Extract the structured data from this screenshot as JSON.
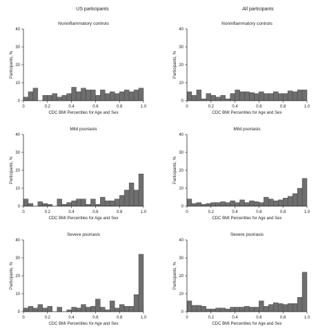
{
  "column_titles": [
    "US participants",
    "All participants"
  ],
  "colors": {
    "bar_fill": "#6e6e6e",
    "bar_stroke": "#3a3a3a",
    "axis": "#222222"
  },
  "chart_data": [
    {
      "type": "bar",
      "column": "US participants",
      "title": "Noninflammatory controls",
      "xlabel": "CDC BMI Percentiles for Age and Sex",
      "ylabel": "Participants, %",
      "xlim": [
        0,
        1
      ],
      "ylim": [
        0,
        40
      ],
      "xticks": [
        0,
        0.2,
        0.4,
        0.6,
        0.8,
        1.0
      ],
      "xtick_labels": [
        "0",
        "0.2",
        "0.4",
        "0.6",
        "0.8",
        "1.0"
      ],
      "yticks": [
        0,
        10,
        20,
        30,
        40
      ],
      "bin_width": 0.04,
      "bin_starts": [
        0,
        0.04,
        0.08,
        0.12,
        0.16,
        0.2,
        0.24,
        0.28,
        0.32,
        0.36,
        0.4,
        0.44,
        0.48,
        0.52,
        0.56,
        0.6,
        0.64,
        0.68,
        0.72,
        0.76,
        0.8,
        0.84,
        0.88,
        0.92,
        0.96
      ],
      "values": [
        2,
        5,
        7,
        0,
        3,
        3,
        4,
        2,
        3,
        4,
        7.5,
        5,
        7,
        6,
        6,
        3,
        6,
        4,
        5,
        4,
        5,
        6,
        5,
        6,
        7
      ]
    },
    {
      "type": "bar",
      "column": "All participants",
      "title": "Noninflammatory controls",
      "xlabel": "CDC BMI Percentiles for Age and Sex",
      "ylabel": "Participants, %",
      "xlim": [
        0,
        1
      ],
      "ylim": [
        0,
        40
      ],
      "xticks": [
        0,
        0.2,
        0.4,
        0.6,
        0.8,
        1.0
      ],
      "xtick_labels": [
        "0",
        "0.2",
        "0.4",
        "0.6",
        "0.8",
        "1.0"
      ],
      "yticks": [
        0,
        10,
        20,
        30,
        40
      ],
      "bin_width": 0.04,
      "bin_starts": [
        0,
        0.04,
        0.08,
        0.12,
        0.16,
        0.2,
        0.24,
        0.28,
        0.32,
        0.36,
        0.4,
        0.44,
        0.48,
        0.52,
        0.56,
        0.6,
        0.64,
        0.68,
        0.72,
        0.76,
        0.8,
        0.84,
        0.88,
        0.92,
        0.96
      ],
      "values": [
        5,
        3,
        6,
        1,
        4,
        3,
        2,
        3,
        1,
        4,
        6,
        5,
        5,
        4.5,
        4,
        5,
        4,
        4,
        5,
        4,
        4,
        5.5,
        5,
        6,
        6
      ]
    },
    {
      "type": "bar",
      "column": "US participants",
      "title": "Mild psoriasis",
      "xlabel": "CDC BMI Percentiles for Age and Sex",
      "ylabel": "Participants, %",
      "xlim": [
        0,
        1
      ],
      "ylim": [
        0,
        40
      ],
      "xticks": [
        0,
        0.2,
        0.4,
        0.6,
        0.8,
        1.0
      ],
      "xtick_labels": [
        "0",
        "0.2",
        "0.4",
        "0.6",
        "0.8",
        "1.0"
      ],
      "yticks": [
        0,
        10,
        20,
        30,
        40
      ],
      "bin_width": 0.04,
      "bin_starts": [
        0,
        0.04,
        0.08,
        0.12,
        0.16,
        0.2,
        0.24,
        0.28,
        0.32,
        0.36,
        0.4,
        0.44,
        0.48,
        0.52,
        0.56,
        0.6,
        0.64,
        0.68,
        0.72,
        0.76,
        0.8,
        0.84,
        0.88,
        0.92,
        0.96
      ],
      "values": [
        4,
        1.5,
        0,
        2.5,
        1.5,
        1,
        0,
        4,
        1,
        2,
        3,
        4,
        4,
        1,
        4,
        1,
        5,
        3,
        3,
        4,
        6,
        9,
        13,
        9,
        18
      ]
    },
    {
      "type": "bar",
      "column": "All participants",
      "title": "Mild psoriasis",
      "xlabel": "CDC BMI Percentiles for Age and Sex",
      "ylabel": "Participants, %",
      "xlim": [
        0,
        1
      ],
      "ylim": [
        0,
        40
      ],
      "xticks": [
        0,
        0.2,
        0.4,
        0.6,
        0.8,
        1.0
      ],
      "xtick_labels": [
        "0",
        "0.2",
        "0.4",
        "0.6",
        "0.8",
        "1.0"
      ],
      "yticks": [
        0,
        10,
        20,
        30,
        40
      ],
      "bin_width": 0.04,
      "bin_starts": [
        0,
        0.04,
        0.08,
        0.12,
        0.16,
        0.2,
        0.24,
        0.28,
        0.32,
        0.36,
        0.4,
        0.44,
        0.48,
        0.52,
        0.56,
        0.6,
        0.64,
        0.68,
        0.72,
        0.76,
        0.8,
        0.84,
        0.88,
        0.92,
        0.96
      ],
      "values": [
        4,
        1.5,
        2,
        1,
        1.5,
        2,
        2,
        2.5,
        2,
        3,
        2,
        3.5,
        2,
        3,
        2.5,
        2,
        5,
        4,
        3,
        3.5,
        4.5,
        5.5,
        7,
        10,
        15.5
      ]
    },
    {
      "type": "bar",
      "column": "US participants",
      "title": "Severe psoriasis",
      "xlabel": "CDC BMI Percentiles for Age and Sex",
      "ylabel": "Participants, %",
      "xlim": [
        0,
        1
      ],
      "ylim": [
        0,
        40
      ],
      "xticks": [
        0,
        0.2,
        0.4,
        0.6,
        0.8,
        1.0
      ],
      "xtick_labels": [
        "0",
        "0.2",
        "0.4",
        "0.6",
        "0.8",
        "1.0"
      ],
      "yticks": [
        0,
        10,
        20,
        30,
        40
      ],
      "bin_width": 0.04,
      "bin_starts": [
        0,
        0.04,
        0.08,
        0.12,
        0.16,
        0.2,
        0.24,
        0.28,
        0.32,
        0.36,
        0.4,
        0.44,
        0.48,
        0.52,
        0.56,
        0.6,
        0.64,
        0.68,
        0.72,
        0.76,
        0.8,
        0.84,
        0.88,
        0.92,
        0.96
      ],
      "values": [
        2,
        3,
        2,
        4,
        2,
        3,
        0,
        2.5,
        0,
        1,
        2.5,
        2,
        4,
        2.5,
        3,
        7,
        2.5,
        1,
        6,
        2,
        4,
        3,
        3,
        9.5,
        32
      ]
    },
    {
      "type": "bar",
      "column": "All participants",
      "title": "Severe psoriasis",
      "xlabel": "CDC BMI Percentiles for Age and Sex",
      "ylabel": "Participants, %",
      "xlim": [
        0,
        1
      ],
      "ylim": [
        0,
        40
      ],
      "xticks": [
        0,
        0.2,
        0.4,
        0.6,
        0.8,
        1.0
      ],
      "xtick_labels": [
        "0",
        "0.2",
        "0.4",
        "0.6",
        "0.8",
        "1.0"
      ],
      "yticks": [
        0,
        10,
        20,
        30,
        40
      ],
      "bin_width": 0.04,
      "bin_starts": [
        0,
        0.04,
        0.08,
        0.12,
        0.16,
        0.2,
        0.24,
        0.28,
        0.32,
        0.36,
        0.4,
        0.44,
        0.48,
        0.52,
        0.56,
        0.6,
        0.64,
        0.68,
        0.72,
        0.76,
        0.8,
        0.84,
        0.88,
        0.92,
        0.96
      ],
      "values": [
        6,
        3.5,
        3.5,
        3,
        1.5,
        1.5,
        2,
        2,
        1.5,
        2.5,
        2.5,
        2.5,
        3,
        2.5,
        2.5,
        6,
        3,
        4,
        5,
        4.5,
        4,
        4.5,
        4.5,
        8,
        22
      ]
    }
  ]
}
